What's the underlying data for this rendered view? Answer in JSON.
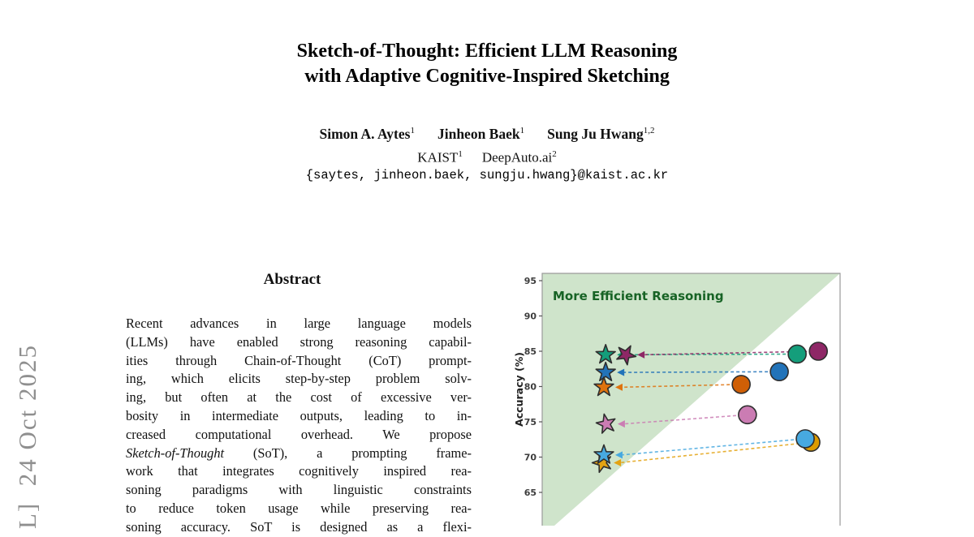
{
  "watermark": {
    "text": "L]  24 Oct 2025"
  },
  "header": {
    "title_line1": "Sketch-of-Thought: Efficient LLM Reasoning",
    "title_line2": "with Adaptive Cognitive-Inspired Sketching",
    "authors": [
      {
        "name": "Simon A. Aytes",
        "sup": "1"
      },
      {
        "name": "Jinheon Baek",
        "sup": "1"
      },
      {
        "name": "Sung Ju Hwang",
        "sup": "1,2"
      }
    ],
    "affiliations": [
      {
        "name": "KAIST",
        "sup": "1"
      },
      {
        "name": "DeepAuto.ai",
        "sup": "2"
      }
    ],
    "email": "{saytes, jinheon.baek, sungju.hwang}@kaist.ac.kr"
  },
  "abstract": {
    "heading": "Abstract",
    "lines": [
      [
        {
          "t": "Recent advances in large language models"
        }
      ],
      [
        {
          "t": "(LLMs) have enabled strong reasoning capabil-"
        }
      ],
      [
        {
          "t": "ities through Chain-of-Thought (CoT) prompt-"
        }
      ],
      [
        {
          "t": "ing, which elicits step-by-step problem solv-"
        }
      ],
      [
        {
          "t": "ing, but often at the cost of excessive ver-"
        }
      ],
      [
        {
          "t": "bosity in intermediate outputs, leading to in-"
        }
      ],
      [
        {
          "t": "creased computational overhead. We propose"
        }
      ],
      [
        {
          "t": "Sketch-of-Thought",
          "i": true
        },
        {
          "t": " (SoT), a prompting frame-"
        }
      ],
      [
        {
          "t": "work that integrates cognitively inspired rea-"
        }
      ],
      [
        {
          "t": "soning paradigms with linguistic constraints"
        }
      ],
      [
        {
          "t": "to reduce token usage while preserving rea-"
        }
      ],
      [
        {
          "t": "soning accuracy. SoT is designed as a flexi-"
        }
      ]
    ]
  },
  "chart_data": {
    "type": "scatter",
    "region_label": "More Efficient Reasoning",
    "region_color": "#cfe4cb",
    "region_label_color": "#176325",
    "ylabel": "Accuracy (%)",
    "ylim": [
      60,
      95
    ],
    "yticks": [
      95,
      90,
      85,
      80,
      75,
      70,
      65
    ],
    "x_axis_labels_visible": false,
    "marker_note": "star = efficient (left), circle = baseline (right); dashed arrow points from circle to star",
    "series": [
      {
        "name": "teal-pair",
        "color": "#149e7b",
        "star": {
          "x": 0.213,
          "acc": 84.5
        },
        "circle": {
          "x": 0.856,
          "acc": 84.6
        }
      },
      {
        "name": "purple-pair",
        "color": "#8e2766",
        "star": {
          "x": 0.281,
          "acc": 84.5,
          "tilt": 28
        },
        "circle": {
          "x": 0.927,
          "acc": 85.0
        }
      },
      {
        "name": "blue-pair",
        "color": "#2273b9",
        "star": {
          "x": 0.213,
          "acc": 82.0
        },
        "circle": {
          "x": 0.796,
          "acc": 82.1
        }
      },
      {
        "name": "orange-pair",
        "color": "#df730e",
        "circle_color": "#cf5f06",
        "star": {
          "x": 0.207,
          "acc": 79.9
        },
        "circle": {
          "x": 0.668,
          "acc": 80.3
        }
      },
      {
        "name": "pink-pair",
        "color": "#cb7cb3",
        "star": {
          "x": 0.215,
          "acc": 74.7,
          "tilt": -12
        },
        "circle": {
          "x": 0.689,
          "acc": 76.0
        }
      },
      {
        "name": "amber-pair",
        "color": "#e3a312",
        "circle_color": "#dd9b00",
        "star": {
          "x": 0.202,
          "acc": 69.2,
          "tilt": -18
        },
        "circle": {
          "x": 0.902,
          "acc": 72.1
        }
      },
      {
        "name": "lightblue-pair",
        "color": "#47a9e0",
        "star": {
          "x": 0.207,
          "acc": 70.3
        },
        "circle": {
          "x": 0.883,
          "acc": 72.6
        }
      }
    ]
  }
}
